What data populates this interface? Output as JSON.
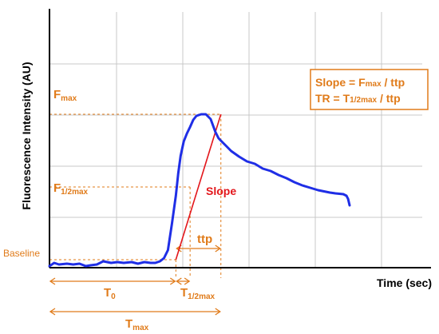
{
  "chart_data": {
    "type": "line",
    "xlabel": "Time (sec)",
    "ylabel": "Fluorescence Intensity (AU)",
    "grid": true,
    "xlim": [
      0,
      480
    ],
    "ylim": [
      0,
      320
    ],
    "series": [
      {
        "color": "#1f2ee6",
        "x": [
          0,
          6,
          12,
          22,
          30,
          38,
          46,
          52,
          60,
          68,
          78,
          86,
          94,
          104,
          112,
          120,
          128,
          134,
          140,
          145,
          150,
          155,
          160,
          163,
          166,
          170,
          174,
          178,
          182,
          186,
          192,
          198,
          204,
          210,
          214,
          218,
          222,
          224,
          230,
          240,
          250,
          260,
          270,
          280,
          290,
          300,
          310,
          320,
          330,
          340,
          350,
          355,
          362,
          372,
          376,
          378,
          380
        ],
        "y": [
          2,
          6,
          4,
          5,
          4,
          5,
          2,
          3,
          4,
          8,
          6,
          7,
          6,
          7,
          5,
          7,
          6,
          6,
          8,
          12,
          22,
          55,
          90,
          118,
          140,
          158,
          168,
          176,
          185,
          190,
          192,
          192,
          186,
          170,
          162,
          158,
          154,
          152,
          146,
          139,
          133,
          130,
          124,
          121,
          116,
          112,
          107,
          103,
          100,
          97,
          95,
          94,
          93,
          92,
          90,
          86,
          78
        ]
      }
    ],
    "slope_line": {
      "label": "Slope",
      "color": "#e3161b",
      "x": [
        160,
        217
      ],
      "y": [
        10,
        192
      ]
    },
    "reference_levels": {
      "fmax": {
        "label": "Fmax",
        "label_main": "F",
        "label_sub": "max",
        "x": 217,
        "y": 192
      },
      "fhalf": {
        "label": "F1/2max",
        "label_main": "F",
        "label_sub": "1/2max",
        "x": 178,
        "y": 101
      },
      "baseline": {
        "label": "Baseline",
        "x": 160,
        "y": 10
      }
    },
    "time_markers": {
      "t0": {
        "label": "T0",
        "label_main": "T",
        "label_sub": "0",
        "x": 160
      },
      "thalf": {
        "label": "T1/2max",
        "label_main": "T",
        "label_sub": "1/2max",
        "x": 178
      },
      "tmax": {
        "label": "Tmax",
        "label_main": "T",
        "label_sub": "max",
        "x": 217
      },
      "ttp": {
        "label": "ttp"
      }
    },
    "annotation_box": {
      "line1": {
        "prefix": "Slope = F",
        "sub": "max",
        "suffix": " / ttp"
      },
      "line2": {
        "prefix": "TR = T",
        "sub": "1/2max",
        "suffix": " / ttp"
      },
      "border_color": "#e07b1a",
      "text_color": "#e07b1a"
    },
    "colors": {
      "curve": "#1f2ee6",
      "slope": "#e3161b",
      "annotation": "#e07b1a",
      "grid": "#c8c8c8",
      "axis": "#000000"
    }
  }
}
